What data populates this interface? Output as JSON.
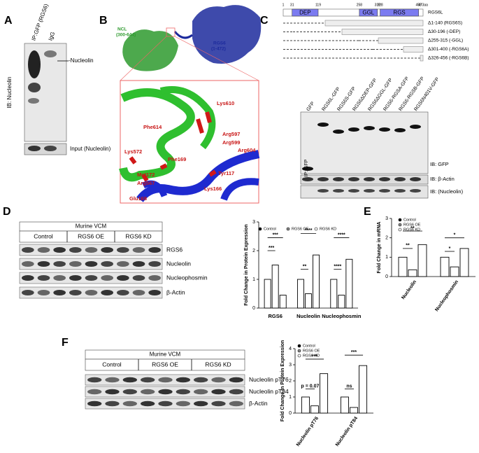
{
  "panel_a": {
    "letter": "A",
    "lanes": [
      "IP:GFP (RGS6)",
      "IgG"
    ],
    "ylabel": "IB: Nucleolin",
    "band_label": "-Nucleolin",
    "input_label": "Input (Nucleolin)"
  },
  "panel_b": {
    "letter": "B",
    "ncl_name": "NCL",
    "ncl_range": "(300-644)",
    "rgs6_name": "RGS6",
    "rgs6_range": "(1-472)",
    "residues": [
      "Lys610",
      "Phe614",
      "Arg597",
      "Arg599",
      "Arg604",
      "Lys572",
      "Phe169",
      "Tyr117",
      "Met172",
      "Arg567",
      "Lys166",
      "Glu168"
    ]
  },
  "panel_c": {
    "letter": "C",
    "scale": {
      "ticks": [
        1,
        31,
        119,
        258,
        319,
        328,
        458,
        {
          "value": 473,
          "label": "473aa"
        }
      ]
    },
    "domains": [
      "DEP",
      "GGL",
      "RGS"
    ],
    "constructs": [
      "RGS6L",
      "Δ1-140 (RGS6S)",
      "Δ30-196 (-DEP)",
      "Δ255-315 (-GGL)",
      "Δ301-400 (-RGS6A)",
      "Δ326-456 (-RGS6B)"
    ],
    "lanes": [
      "GFP",
      "RGS6L-GFP",
      "RGS6S-GFP",
      "RGS6ΔDEP-GFP",
      "RGS6ΔGGL-GFP",
      "RGS6-RGSA-GFP",
      "RGS6-RGSB-GFP",
      "RGS6N401V-GFP"
    ],
    "ip_label": "IP: GFP",
    "blots": [
      "IB: GFP",
      "IB: β-Actin",
      "IB:  (Nucleolin)"
    ]
  },
  "panel_d": {
    "letter": "D",
    "blot": {
      "title": "Murine VCM",
      "groups": [
        "Control",
        "RGS6 OE",
        "RGS6 KD"
      ],
      "rows": [
        "RGS6",
        "Nucleolin",
        "Nucleophosmin",
        "β-Actin"
      ]
    },
    "chart": {
      "type": "bar",
      "ylabel": "Fold Change in Protein Expression",
      "categories": [
        "RGS6",
        "Nucleolin",
        "Nucleophosmin"
      ],
      "series": [
        {
          "name": "Control",
          "color": "#000000",
          "values": [
            1.0,
            1.0,
            1.0
          ]
        },
        {
          "name": "RGS6 OE",
          "color": "#8c8c8c",
          "values": [
            1.5,
            0.5,
            0.45
          ]
        },
        {
          "name": "RGS6 KD",
          "color": "#ffffff",
          "values": [
            0.45,
            1.85,
            1.7
          ]
        }
      ],
      "ylim": [
        0,
        3
      ],
      "yticks": [
        0,
        1,
        2,
        3
      ],
      "annotations": [
        "***",
        "***",
        "****",
        "**",
        "****",
        "****"
      ]
    }
  },
  "panel_e": {
    "letter": "E",
    "chart": {
      "type": "bar",
      "ylabel": "Fold Change in mRNA",
      "categories": [
        "Nucleolin",
        "Nucleophosmin"
      ],
      "series": [
        {
          "name": "Control",
          "color": "#000000",
          "values": [
            1.0,
            1.0
          ]
        },
        {
          "name": "RGS6 OE",
          "color": "#8c8c8c",
          "values": [
            0.35,
            0.5
          ]
        },
        {
          "name": "RGS6 KD",
          "color": "#ffffff",
          "values": [
            1.65,
            1.45
          ]
        }
      ],
      "ylim": [
        0,
        3
      ],
      "yticks": [
        0,
        1,
        2,
        3
      ],
      "annotations": [
        "**",
        "**",
        "*",
        "*"
      ]
    }
  },
  "panel_f": {
    "letter": "F",
    "blot": {
      "title": "Murine VCM",
      "groups": [
        "Control",
        "RGS6 OE",
        "RGS6 KD"
      ],
      "rows": [
        "Nucleolin pT76",
        "Nucleolin pT84",
        "β-Actin"
      ]
    },
    "chart": {
      "type": "bar",
      "ylabel": "Fold Change in Protein  Expression",
      "categories": [
        "Nucleolin pT76",
        "Nucleolin pT84"
      ],
      "series": [
        {
          "name": "Control",
          "color": "#000000",
          "values": [
            1.0,
            1.0
          ]
        },
        {
          "name": "RGS6 OE",
          "color": "#8c8c8c",
          "values": [
            0.45,
            0.35
          ]
        },
        {
          "name": "RGS6 KD",
          "color": "#ffffff",
          "values": [
            2.45,
            2.95
          ]
        }
      ],
      "ylim": [
        0,
        4
      ],
      "yticks": [
        0,
        1,
        2,
        3,
        4
      ],
      "annotations": [
        "***",
        "p = 0.07",
        "***",
        "ns"
      ]
    }
  }
}
